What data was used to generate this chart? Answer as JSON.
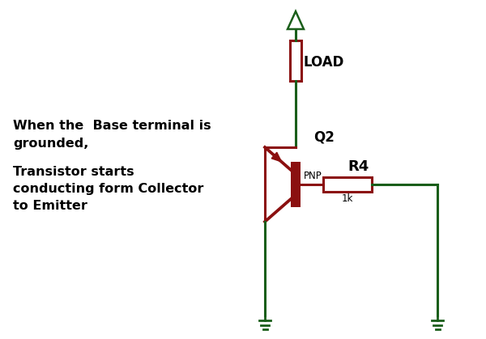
{
  "bg_color": "#ffffff",
  "gc": "#1a5e1a",
  "dc": "#8B1010",
  "text_color": "#000000",
  "label_load": "LOAD",
  "label_q2": "Q2",
  "label_pnp": "PNP",
  "label_r4": "R4",
  "label_1k": "1k",
  "text_line1": "When the  Base terminal is",
  "text_line2": "grounded,",
  "text_line3": "Transistor starts",
  "text_line4": "conducting form Collector",
  "text_line5": "to Emitter",
  "figsize": [
    6.0,
    4.19
  ],
  "dpi": 100
}
